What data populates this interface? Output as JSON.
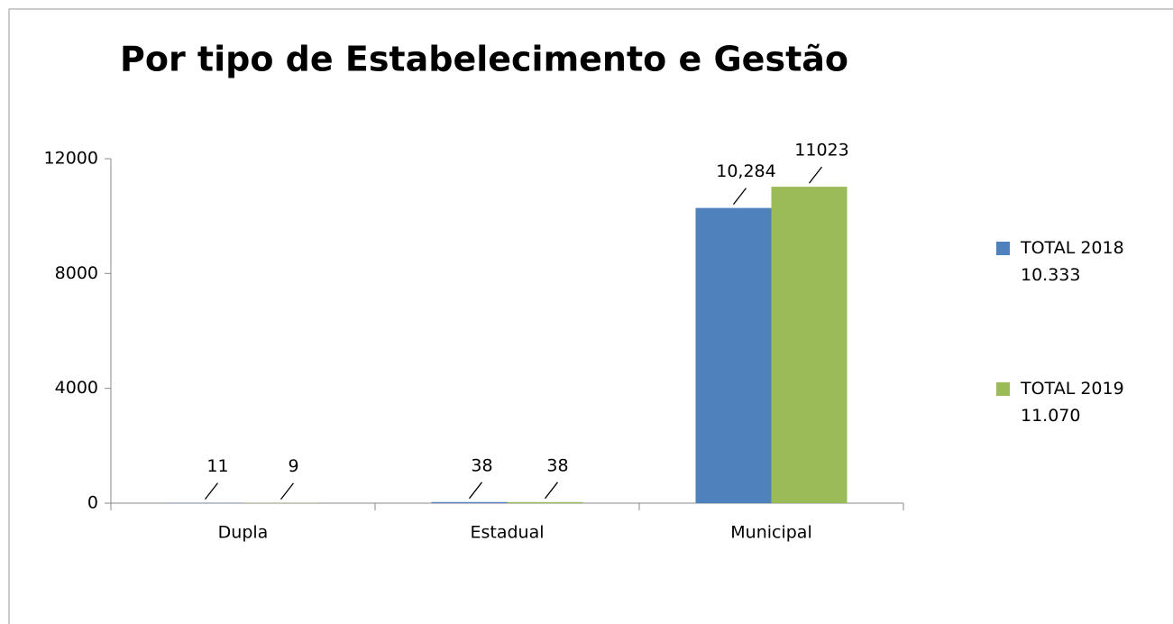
{
  "chart_data": {
    "type": "bar",
    "title": "Por tipo de Estabelecimento e Gestão",
    "categories": [
      "Dupla",
      "Estadual",
      "Municipal"
    ],
    "series": [
      {
        "name": "TOTAL 2018\n10.333",
        "color": "#4f81bd",
        "values": [
          11,
          38,
          10284
        ],
        "value_labels": [
          "11",
          "38",
          "10,284"
        ]
      },
      {
        "name": "TOTAL 2019\n11.070",
        "color": "#9bbb59",
        "values": [
          9,
          38,
          11023
        ]
      }
    ],
    "ylim": [
      0,
      12000
    ],
    "yticks": [
      0,
      4000,
      8000,
      12000
    ],
    "grid": false,
    "legend": "right"
  }
}
